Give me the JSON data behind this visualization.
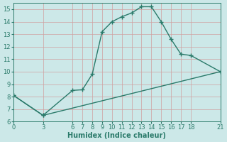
{
  "title": "",
  "xlabel": "Humidex (Indice chaleur)",
  "bg_color": "#cce8e8",
  "grid_color": "#b0d4d4",
  "line_color": "#2a7a6a",
  "series1_x": [
    0,
    3,
    6,
    7,
    8,
    9,
    10,
    11,
    12,
    13,
    14,
    15,
    16,
    17,
    18,
    21
  ],
  "series1_y": [
    8.1,
    6.5,
    8.5,
    8.55,
    9.8,
    13.2,
    14.0,
    14.4,
    14.7,
    15.2,
    15.2,
    14.0,
    12.6,
    11.4,
    11.3,
    10.0
  ],
  "series2_x": [
    0,
    3,
    21
  ],
  "series2_y": [
    8.1,
    6.5,
    10.0
  ],
  "xticks": [
    0,
    3,
    6,
    7,
    8,
    9,
    10,
    11,
    12,
    13,
    14,
    15,
    16,
    17,
    18,
    21
  ],
  "yticks": [
    6,
    7,
    8,
    9,
    10,
    11,
    12,
    13,
    14,
    15
  ],
  "xlim": [
    0,
    21
  ],
  "ylim": [
    6,
    15.5
  ],
  "markersize": 4,
  "linewidth": 1.0,
  "xlabel_fontsize": 7,
  "tick_fontsize": 6
}
